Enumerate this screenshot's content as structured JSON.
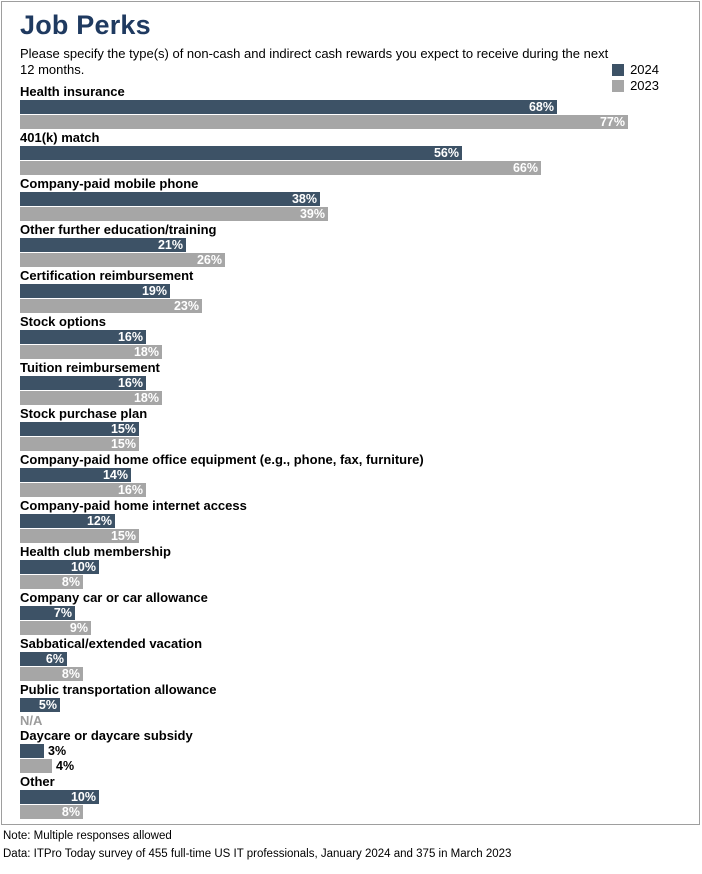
{
  "chart": {
    "title": "Job Perks",
    "subtitle": "Please specify the type(s) of non-cash and indirect cash rewards you expect to receive during the next 12 months.",
    "legend": [
      {
        "label": "2024",
        "color": "#3d5266"
      },
      {
        "label": "2023",
        "color": "#a6a6a6"
      }
    ],
    "colors": {
      "title": "#1f3a60",
      "na_text": "#9b9b9b"
    },
    "note": "Note: Multiple responses allowed",
    "source": "Data: ITPro Today survey of 455 full-time US IT professionals, January 2024 and 375 in March 2023"
  },
  "chart_data": {
    "type": "bar",
    "orientation": "horizontal",
    "title": "Job Perks",
    "xlabel": "",
    "ylabel": "",
    "xlim": [
      0,
      100
    ],
    "grid": false,
    "legend_position": "top-right",
    "na_label": "N/A",
    "value_suffix": "%",
    "categories": [
      "Health insurance",
      "401(k) match",
      "Company-paid mobile phone",
      "Other further education/training",
      "Certification reimbursement",
      "Stock options",
      "Tuition reimbursement",
      "Stock purchase plan",
      "Company-paid home office equipment (e.g., phone, fax, furniture)",
      "Company-paid home internet access",
      "Health club membership",
      "Company car or car allowance",
      "Sabbatical/extended vacation",
      "Public transportation allowance",
      "Daycare or daycare subsidy",
      "Other"
    ],
    "series": [
      {
        "name": "2024",
        "values": [
          68,
          56,
          38,
          21,
          19,
          16,
          16,
          15,
          14,
          12,
          10,
          7,
          6,
          5,
          3,
          10
        ]
      },
      {
        "name": "2023",
        "values": [
          77,
          66,
          39,
          26,
          23,
          18,
          18,
          15,
          16,
          15,
          8,
          9,
          8,
          null,
          4,
          8
        ]
      }
    ]
  }
}
